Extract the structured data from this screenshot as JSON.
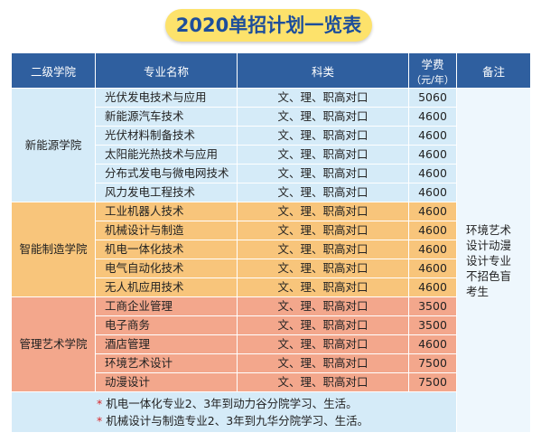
{
  "title": "2020单招计划一览表",
  "header": {
    "college": "二级学院",
    "major": "专业名称",
    "category": "科类",
    "fee": "学费",
    "fee_unit": "（元/年）",
    "remark": "备注"
  },
  "groups": [
    {
      "name": "新能源学院",
      "rows": [
        {
          "major": "光伏发电技术与应用",
          "category": "文、理、职高对口",
          "fee": "5060"
        },
        {
          "major": "新能源汽车技术",
          "category": "文、理、职高对口",
          "fee": "4600"
        },
        {
          "major": "光伏材料制备技术",
          "category": "文、理、职高对口",
          "fee": "4600"
        },
        {
          "major": "太阳能光热技术与应用",
          "category": "文、理、职高对口",
          "fee": "4600"
        },
        {
          "major": "分布式发电与微电网技术",
          "category": "文、理、职高对口",
          "fee": "4600"
        },
        {
          "major": "风力发电工程技术",
          "category": "文、理、职高对口",
          "fee": "4600"
        }
      ]
    },
    {
      "name": "智能制造学院",
      "rows": [
        {
          "major": "工业机器人技术",
          "category": "文、理、职高对口",
          "fee": "4600"
        },
        {
          "major": "机械设计与制造",
          "category": "文、理、职高对口",
          "fee": "4600"
        },
        {
          "major": "机电一体化技术",
          "category": "文、理、职高对口",
          "fee": "4600"
        },
        {
          "major": "电气自动化技术",
          "category": "文、理、职高对口",
          "fee": "4600"
        },
        {
          "major": "无人机应用技术",
          "category": "文、理、职高对口",
          "fee": "4600"
        }
      ]
    },
    {
      "name": "管理艺术学院",
      "rows": [
        {
          "major": "工商企业管理",
          "category": "文、理、职高对口",
          "fee": "3500"
        },
        {
          "major": "电子商务",
          "category": "文、理、职高对口",
          "fee": "3500"
        },
        {
          "major": "酒店管理",
          "category": "文、理、职高对口",
          "fee": "4600"
        },
        {
          "major": "环境艺术设计",
          "category": "文、理、职高对口",
          "fee": "7500"
        },
        {
          "major": "动漫设计",
          "category": "文、理、职高对口",
          "fee": "7500"
        }
      ]
    }
  ],
  "remark": "环境艺术设计动漫设计专业不招色盲考生",
  "notes": [
    {
      "mark": "*",
      "text": "机电一体化专业2、3年到动力谷分院学习、生活。"
    },
    {
      "mark": "*",
      "text": "机械设计与制造专业2、3年到九华分院学习、生活。"
    }
  ]
}
